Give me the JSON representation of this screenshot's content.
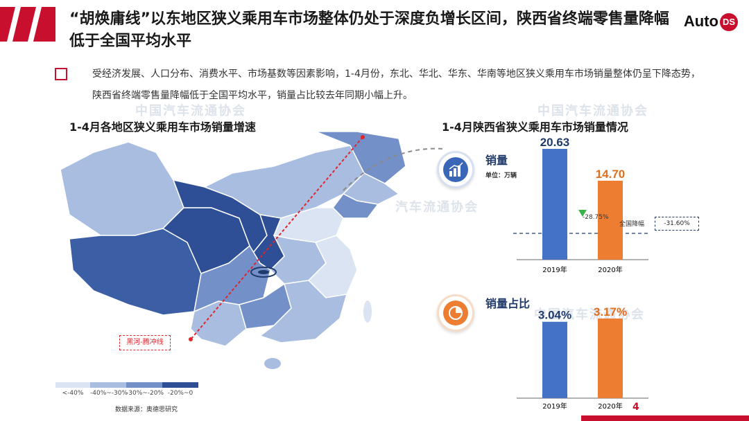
{
  "header": {
    "title": "“胡焕庸线”以东地区狭义乘用车市场整体仍处于深度负增长区间，陕西省终端零售量降幅低于全国平均水平",
    "logo_text": "Auto",
    "logo_badge": "DS"
  },
  "bullet": {
    "text": "受经济发展、人口分布、消费水平、市场基数等因素影响，1-4月份，东北、华北、华东、华南等地区狭义乘用车市场销量整体仍呈下降态势，陕西省终端零售量降幅低于全国平均水平，销量占比较去年同期小幅上升。"
  },
  "watermarks": [
    "中国汽车流通协会",
    "中国汽车流通协会",
    "汽车流通协会",
    "中国汽车流通协会"
  ],
  "map": {
    "title": "1-4月各地区狭义乘用车市场销量增速",
    "line_label": "黑河-腾冲线",
    "legend": [
      {
        "label": "<-40%",
        "color": "#dbe4f2"
      },
      {
        "label": "-40%~-30%",
        "color": "#a9bde0"
      },
      {
        "label": "-30%~-20%",
        "color": "#7390c8"
      },
      {
        "label": "-20%~0",
        "color": "#2e4f95"
      }
    ],
    "source": "数据来源：奥德思研究"
  },
  "right": {
    "title": "1-4月陕西省狭义乘用车市场销量情况",
    "sales": {
      "label": "销量",
      "unit": "单位：万辆",
      "change": "-28.75%",
      "national_label": "全国降幅",
      "national_value": "-31.60%"
    },
    "share": {
      "label": "销量占比"
    },
    "colors": {
      "y2019": "#4472c4",
      "y2020": "#ed7d31"
    }
  },
  "chart_data": [
    {
      "type": "bar",
      "title": "销量",
      "categories": [
        "2019年",
        "2020年"
      ],
      "values": [
        20.63,
        14.7
      ],
      "value_labels": [
        "20.63",
        "14.70"
      ],
      "ylabel": "单位：万辆"
    },
    {
      "type": "bar",
      "title": "销量占比",
      "categories": [
        "2019年",
        "2020年"
      ],
      "values": [
        3.04,
        3.17
      ],
      "value_labels": [
        "3.04%",
        "3.17%"
      ]
    }
  ],
  "page_number": "4"
}
